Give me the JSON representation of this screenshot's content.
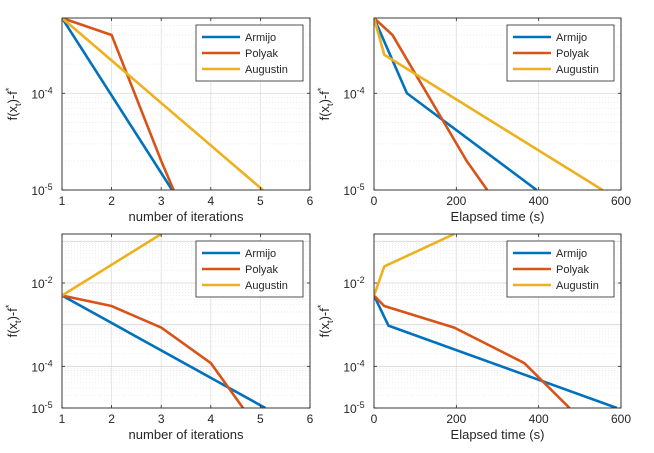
{
  "chart_data": [
    {
      "type": "line",
      "yscale": "log",
      "xlabel": "number of iterations",
      "ylabel": "f(x_t)-f*",
      "xlim": [
        1,
        6
      ],
      "ylim": [
        1e-05,
        0.0006
      ],
      "xticks": [
        1,
        2,
        3,
        4,
        5,
        6
      ],
      "xtick_labels": [
        "1",
        "2",
        "3",
        "4",
        "5",
        "6"
      ],
      "yticks": [
        1e-05,
        0.0001
      ],
      "ytick_labels": [
        {
          "base": "10",
          "exp": "-5"
        },
        {
          "base": "10",
          "exp": "-4"
        }
      ],
      "grid": true,
      "legend": "top-right",
      "series": [
        {
          "name": "Armijo",
          "color": "#0072BD",
          "x": [
            1,
            3.22
          ],
          "y": [
            0.0006,
            1e-05
          ]
        },
        {
          "name": "Polyak",
          "color": "#D95319",
          "x": [
            1,
            2,
            3,
            3.25
          ],
          "y": [
            0.0006,
            0.0004,
            2e-05,
            1e-05
          ]
        },
        {
          "name": "Augustin",
          "color": "#EDB120",
          "x": [
            1,
            5.05
          ],
          "y": [
            0.0006,
            1e-05
          ]
        }
      ]
    },
    {
      "type": "line",
      "yscale": "log",
      "xlabel": "Elapsed time (s)",
      "ylabel": "f(x_t)-f*",
      "xlim": [
        0,
        600
      ],
      "ylim": [
        1e-05,
        0.0006
      ],
      "xticks": [
        0,
        200,
        400,
        600
      ],
      "xtick_labels": [
        "0",
        "200",
        "400",
        "600"
      ],
      "yticks": [
        1e-05,
        0.0001
      ],
      "ytick_labels": [
        {
          "base": "10",
          "exp": "-5"
        },
        {
          "base": "10",
          "exp": "-4"
        }
      ],
      "grid": true,
      "legend": "top-right",
      "series": [
        {
          "name": "Armijo",
          "color": "#0072BD",
          "x": [
            0,
            80,
            395
          ],
          "y": [
            0.0006,
            0.0001,
            1e-05
          ]
        },
        {
          "name": "Polyak",
          "color": "#D95319",
          "x": [
            0,
            45,
            225,
            275
          ],
          "y": [
            0.0006,
            0.0004,
            2e-05,
            1e-05
          ]
        },
        {
          "name": "Augustin",
          "color": "#EDB120",
          "x": [
            0,
            25,
            555
          ],
          "y": [
            0.0006,
            0.00025,
            1e-05
          ]
        }
      ]
    },
    {
      "type": "line",
      "yscale": "log",
      "xlabel": "number of iterations",
      "ylabel": "f(x_t)-f*",
      "xlim": [
        1,
        6
      ],
      "ylim": [
        1e-05,
        0.15
      ],
      "xticks": [
        1,
        2,
        3,
        4,
        5,
        6
      ],
      "xtick_labels": [
        "1",
        "2",
        "3",
        "4",
        "5",
        "6"
      ],
      "yticks": [
        1e-05,
        0.0001,
        0.01
      ],
      "ytick_labels": [
        {
          "base": "10",
          "exp": "-5"
        },
        {
          "base": "10",
          "exp": "-4"
        },
        {
          "base": "10",
          "exp": "-2"
        }
      ],
      "grid": true,
      "legend": "top-right",
      "series": [
        {
          "name": "Armijo",
          "color": "#0072BD",
          "x": [
            1,
            5.1
          ],
          "y": [
            0.005,
            1e-05
          ]
        },
        {
          "name": "Polyak",
          "color": "#D95319",
          "x": [
            1,
            2,
            3,
            4,
            4.65
          ],
          "y": [
            0.005,
            0.0028,
            0.00085,
            0.00012,
            1e-05
          ]
        },
        {
          "name": "Augustin",
          "color": "#EDB120",
          "x": [
            1,
            3
          ],
          "y": [
            0.005,
            0.15
          ]
        }
      ]
    },
    {
      "type": "line",
      "yscale": "log",
      "xlabel": "Elapsed time (s)",
      "ylabel": "f(x_t)-f*",
      "xlim": [
        0,
        600
      ],
      "ylim": [
        1e-05,
        0.15
      ],
      "xticks": [
        0,
        200,
        400,
        600
      ],
      "xtick_labels": [
        "0",
        "200",
        "400",
        "600"
      ],
      "yticks": [
        1e-05,
        0.0001,
        0.01
      ],
      "ytick_labels": [
        {
          "base": "10",
          "exp": "-5"
        },
        {
          "base": "10",
          "exp": "-4"
        },
        {
          "base": "10",
          "exp": "-2"
        }
      ],
      "grid": true,
      "legend": "top-right",
      "series": [
        {
          "name": "Armijo",
          "color": "#0072BD",
          "x": [
            0,
            35,
            590
          ],
          "y": [
            0.005,
            0.00095,
            1e-05
          ]
        },
        {
          "name": "Polyak",
          "color": "#D95319",
          "x": [
            0,
            25,
            195,
            365,
            475
          ],
          "y": [
            0.005,
            0.0028,
            0.00085,
            0.00012,
            1e-05
          ]
        },
        {
          "name": "Augustin",
          "color": "#EDB120",
          "x": [
            0,
            25,
            195
          ],
          "y": [
            0.005,
            0.025,
            0.15
          ]
        }
      ]
    }
  ]
}
